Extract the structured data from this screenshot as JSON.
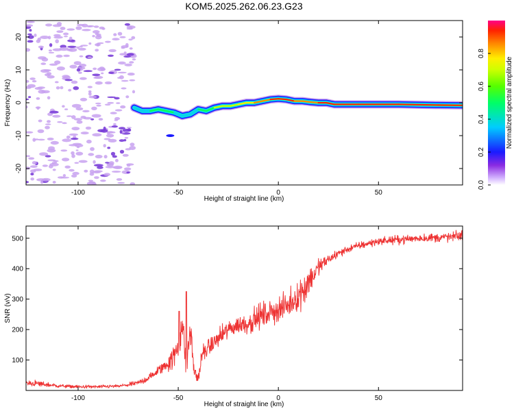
{
  "title": "KOM5.2025.262.06.23.G23",
  "colors": {
    "signal": "#ee3333",
    "blob": "#c8a2f0",
    "blob_dark": "#7a3ed8"
  },
  "chart_data": [
    {
      "type": "heatmap",
      "name": "spectrogram",
      "xlabel": "Height of straight line (km)",
      "ylabel": "Frequency (Hz)",
      "xlim": [
        -126,
        92
      ],
      "ylim": [
        -25,
        25
      ],
      "xticks": [
        -100,
        -50,
        0,
        50
      ],
      "xtick_labels": [
        "-100",
        "-50",
        "0",
        "50"
      ],
      "yticks": [
        -20,
        -10,
        0,
        10,
        20
      ],
      "ytick_labels": [
        "-20",
        "-10",
        "0",
        "10",
        "20"
      ],
      "ridge": {
        "x": [
          -72,
          -68,
          -64,
          -60,
          -56,
          -52,
          -48,
          -44,
          -40,
          -36,
          -32,
          -28,
          -24,
          -20,
          -16,
          -12,
          -8,
          -4,
          0,
          4,
          8,
          12,
          16,
          20,
          24,
          28,
          40,
          60,
          80,
          92
        ],
        "freq": [
          -1.5,
          -2.5,
          -2.5,
          -2.0,
          -2.5,
          -3.0,
          -4.0,
          -3.5,
          -2.0,
          -2.5,
          -1.5,
          -1.0,
          -1.0,
          -0.5,
          0.0,
          0.0,
          0.5,
          1.0,
          1.2,
          1.0,
          0.5,
          0.5,
          0.2,
          0.0,
          0.0,
          -0.5,
          -0.5,
          -0.5,
          -0.7,
          -0.8
        ],
        "amplitude": [
          0.3,
          0.35,
          0.4,
          0.45,
          0.45,
          0.4,
          0.3,
          0.35,
          0.45,
          0.5,
          0.55,
          0.6,
          0.65,
          0.7,
          0.75,
          0.8,
          0.85,
          0.9,
          0.95,
          0.95,
          0.9,
          0.9,
          0.9,
          0.9,
          0.95,
          0.95,
          0.95,
          0.95,
          0.95,
          0.95
        ]
      },
      "colorbar": {
        "label": "Normalized spectral amplitude",
        "range": [
          0,
          1
        ],
        "ticks": [
          0.0,
          0.2,
          0.4,
          0.6,
          0.8
        ],
        "tick_labels": [
          "0.0",
          "0.2",
          "0.4",
          "0.6",
          "0.8"
        ]
      }
    },
    {
      "type": "line",
      "name": "snr",
      "xlabel": "Height of straight line (km)",
      "ylabel": "SNR (v/v)",
      "xlim": [
        -126,
        92
      ],
      "ylim": [
        0,
        540
      ],
      "xticks": [
        -100,
        -50,
        0,
        50
      ],
      "xtick_labels": [
        "-100",
        "-50",
        "0",
        "50"
      ],
      "yticks": [
        100,
        200,
        300,
        400,
        500
      ],
      "ytick_labels": [
        "100",
        "200",
        "300",
        "400",
        "500"
      ],
      "series": [
        {
          "name": "SNR",
          "x": [
            -126,
            -120,
            -110,
            -100,
            -90,
            -80,
            -75,
            -70,
            -65,
            -62,
            -58,
            -55,
            -52,
            -50,
            -48,
            -46,
            -44,
            -42,
            -40,
            -38,
            -35,
            -30,
            -25,
            -20,
            -15,
            -10,
            -5,
            0,
            5,
            10,
            13,
            15,
            18,
            20,
            25,
            30,
            35,
            40,
            50,
            60,
            70,
            80,
            88,
            92
          ],
          "values": [
            25,
            22,
            15,
            12,
            12,
            14,
            18,
            25,
            40,
            55,
            75,
            90,
            110,
            150,
            220,
            80,
            200,
            60,
            40,
            120,
            140,
            170,
            200,
            215,
            220,
            240,
            255,
            265,
            280,
            310,
            335,
            360,
            380,
            405,
            430,
            450,
            465,
            475,
            490,
            495,
            500,
            502,
            505,
            510
          ],
          "noise": [
            15,
            15,
            8,
            8,
            8,
            8,
            10,
            12,
            18,
            20,
            30,
            40,
            60,
            80,
            90,
            60,
            80,
            40,
            30,
            40,
            40,
            45,
            45,
            45,
            50,
            60,
            60,
            60,
            60,
            70,
            80,
            80,
            60,
            40,
            25,
            20,
            18,
            18,
            18,
            20,
            20,
            22,
            25,
            25
          ]
        }
      ],
      "peaks": [
        {
          "x": -49.5,
          "value": 260
        },
        {
          "x": -46.0,
          "value": 325
        }
      ]
    }
  ]
}
